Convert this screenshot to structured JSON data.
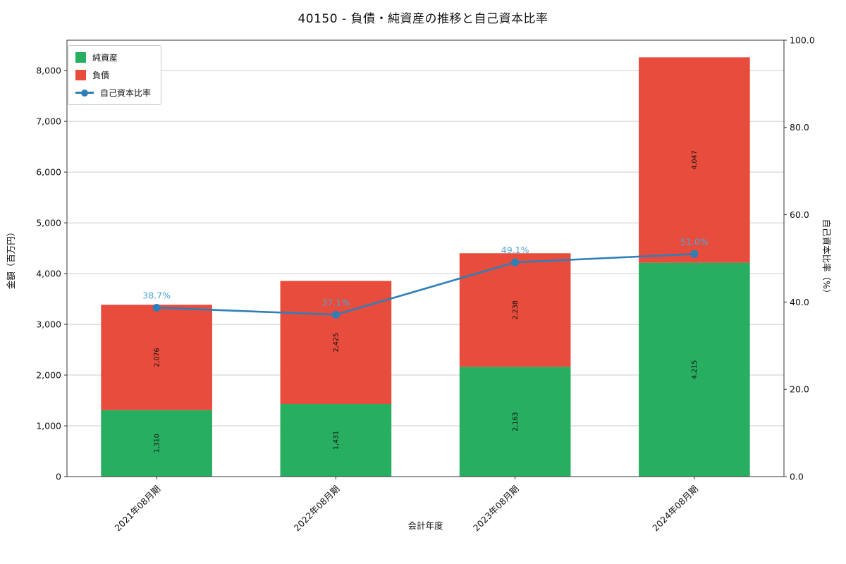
{
  "chart_data": {
    "type": "bar",
    "stacked": true,
    "title": "40150 - 負債・純資産の推移と自己資本比率",
    "xlabel": "会計年度",
    "ylabel_left": "金額（百万円）",
    "ylabel_right": "自己資本比率（%）",
    "categories": [
      "2021年08月期",
      "2022年08月期",
      "2023年08月期",
      "2024年08月期"
    ],
    "series": [
      {
        "key": "net-assets",
        "name": "純資産",
        "type": "bar",
        "color": "#27ae60",
        "values": [
          1310,
          1431,
          2163,
          4215
        ],
        "labels": [
          "1,310",
          "1,431",
          "2,163",
          "4,215"
        ]
      },
      {
        "key": "liabilities",
        "name": "負債",
        "type": "bar",
        "color": "#e74c3c",
        "values": [
          2076,
          2425,
          2238,
          4047
        ],
        "labels": [
          "2,076",
          "2,425",
          "2,238",
          "4,047"
        ]
      },
      {
        "key": "equity-ratio",
        "name": "自己資本比率",
        "type": "line",
        "axis": "right",
        "color": "#2e7fb8",
        "label_color": "#4ba3d6",
        "values": [
          38.7,
          37.1,
          49.1,
          51.0
        ],
        "labels": [
          "38.7%",
          "37.1%",
          "49.1%",
          "51.0%"
        ]
      }
    ],
    "left_axis": {
      "min": 0,
      "max": 8600,
      "ticks": [
        0,
        1000,
        2000,
        3000,
        4000,
        5000,
        6000,
        7000,
        8000
      ],
      "tick_labels": [
        "0",
        "1,000",
        "2,000",
        "3,000",
        "4,000",
        "5,000",
        "6,000",
        "7,000",
        "8,000"
      ]
    },
    "right_axis": {
      "min": 0,
      "max": 100,
      "ticks": [
        0,
        20,
        40,
        60,
        80,
        100
      ],
      "tick_labels": [
        "0.0",
        "20.0",
        "40.0",
        "60.0",
        "80.0",
        "100.0"
      ]
    },
    "legend": {
      "position": "upper-left",
      "entries": [
        "純資産",
        "負債",
        "自己資本比率"
      ]
    },
    "grid": "horizontal"
  },
  "colors": {
    "grid": "#cccccc",
    "spine": "#333333",
    "text": "#111111"
  }
}
